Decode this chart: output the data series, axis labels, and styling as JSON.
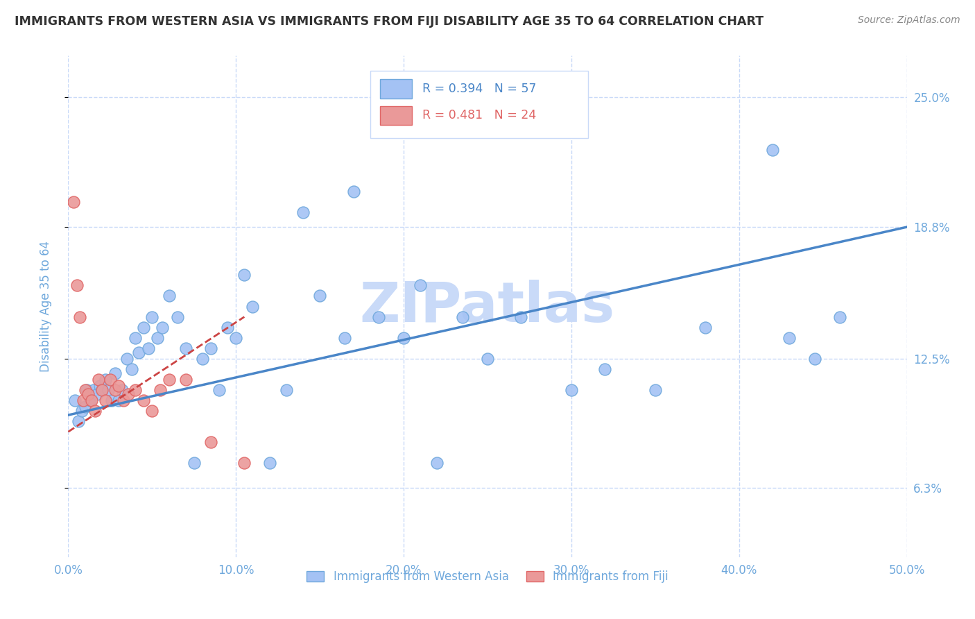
{
  "title": "IMMIGRANTS FROM WESTERN ASIA VS IMMIGRANTS FROM FIJI DISABILITY AGE 35 TO 64 CORRELATION CHART",
  "source": "Source: ZipAtlas.com",
  "ylabel": "Disability Age 35 to 64",
  "xlim": [
    0.0,
    50.0
  ],
  "ylim": [
    3.0,
    27.0
  ],
  "xticks": [
    0.0,
    10.0,
    20.0,
    30.0,
    40.0,
    50.0
  ],
  "xtick_labels": [
    "0.0%",
    "10.0%",
    "20.0%",
    "30.0%",
    "40.0%",
    "50.0%"
  ],
  "ytick_values": [
    6.3,
    12.5,
    18.8,
    25.0
  ],
  "ytick_labels": [
    "6.3%",
    "12.5%",
    "18.8%",
    "25.0%"
  ],
  "western_asia_R": 0.394,
  "western_asia_N": 57,
  "fiji_R": 0.481,
  "fiji_N": 24,
  "blue_scatter_color": "#a4c2f4",
  "blue_edge_color": "#6fa8dc",
  "pink_scatter_color": "#ea9999",
  "pink_edge_color": "#e06666",
  "blue_line_color": "#4a86c8",
  "pink_line_color": "#cc4444",
  "title_color": "#333333",
  "axis_label_color": "#6fa8dc",
  "tick_color": "#6fa8dc",
  "watermark_color": "#c9daf8",
  "background_color": "#ffffff",
  "grid_color": "#c9daf8",
  "wa_x": [
    0.4,
    0.6,
    0.8,
    1.0,
    1.1,
    1.3,
    1.5,
    1.7,
    1.9,
    2.0,
    2.2,
    2.4,
    2.6,
    2.8,
    3.0,
    3.2,
    3.5,
    3.8,
    4.0,
    4.2,
    4.5,
    4.8,
    5.0,
    5.3,
    5.6,
    6.0,
    6.5,
    7.0,
    7.5,
    8.0,
    8.5,
    9.0,
    9.5,
    10.0,
    10.5,
    11.0,
    12.0,
    13.0,
    14.0,
    15.0,
    16.5,
    17.0,
    18.5,
    20.0,
    21.0,
    22.0,
    23.5,
    25.0,
    27.0,
    30.0,
    32.0,
    35.0,
    38.0,
    42.0,
    43.0,
    44.5,
    46.0
  ],
  "wa_y": [
    10.5,
    9.5,
    10.0,
    10.2,
    11.0,
    10.5,
    11.0,
    10.8,
    11.2,
    11.0,
    11.5,
    11.0,
    10.5,
    11.8,
    10.5,
    11.0,
    12.5,
    12.0,
    13.5,
    12.8,
    14.0,
    13.0,
    14.5,
    13.5,
    14.0,
    15.5,
    14.5,
    13.0,
    7.5,
    12.5,
    13.0,
    11.0,
    14.0,
    13.5,
    16.5,
    15.0,
    7.5,
    11.0,
    19.5,
    15.5,
    13.5,
    20.5,
    14.5,
    13.5,
    16.0,
    7.5,
    14.5,
    12.5,
    14.5,
    11.0,
    12.0,
    11.0,
    14.0,
    22.5,
    13.5,
    12.5,
    14.5
  ],
  "fiji_x": [
    0.3,
    0.5,
    0.7,
    0.9,
    1.0,
    1.2,
    1.4,
    1.6,
    1.8,
    2.0,
    2.2,
    2.5,
    2.8,
    3.0,
    3.3,
    3.6,
    4.0,
    4.5,
    5.0,
    5.5,
    6.0,
    7.0,
    8.5,
    10.5
  ],
  "fiji_y": [
    20.0,
    16.0,
    14.5,
    10.5,
    11.0,
    10.8,
    10.5,
    10.0,
    11.5,
    11.0,
    10.5,
    11.5,
    11.0,
    11.2,
    10.5,
    10.8,
    11.0,
    10.5,
    10.0,
    11.0,
    11.5,
    11.5,
    8.5,
    7.5
  ],
  "wa_line_x": [
    0.0,
    50.0
  ],
  "wa_line_y": [
    9.8,
    18.8
  ],
  "fiji_line_x": [
    0.0,
    10.5
  ],
  "fiji_line_y": [
    9.0,
    14.5
  ]
}
